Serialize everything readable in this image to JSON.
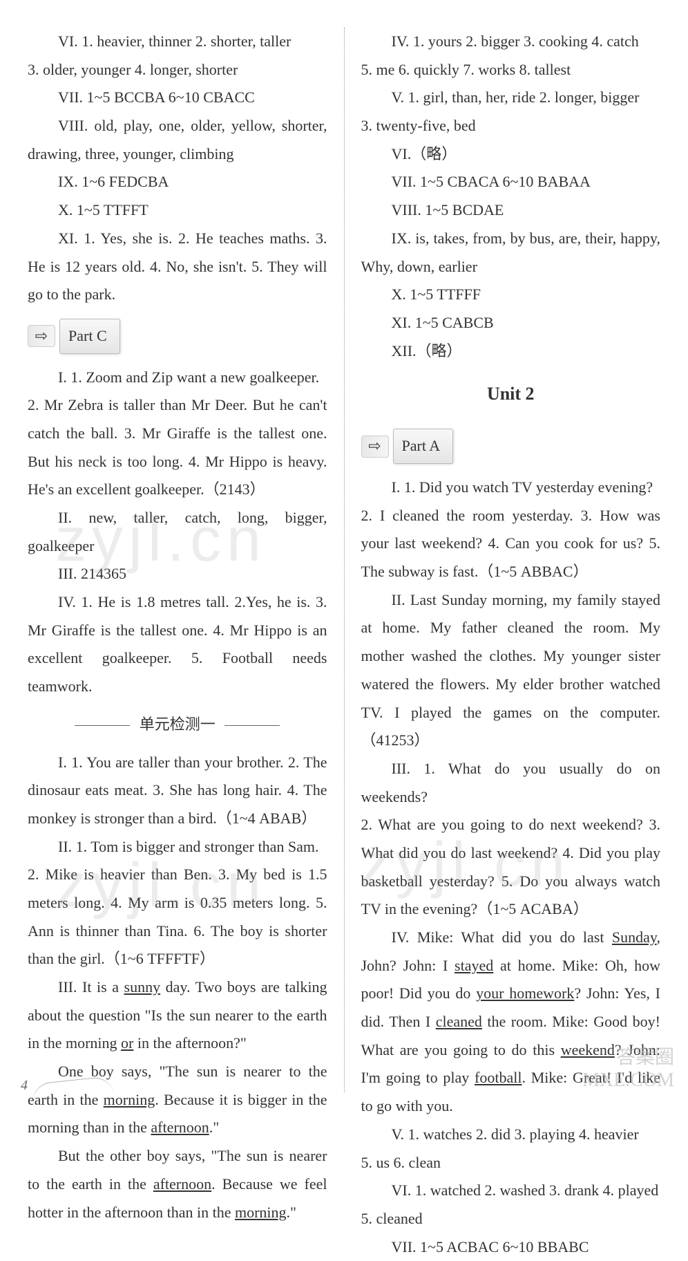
{
  "left": {
    "vi": "VI. 1. heavier, thinner   2. shorter, taller",
    "vi_cont": "3. older, younger   4. longer, shorter",
    "vii": "VII. 1~5 BCCBA   6~10 CBACC",
    "viii": "VIII. old, play, one, older, yellow, shorter, drawing, three, younger, climbing",
    "ix": "IX. 1~6 FEDCBA",
    "x": "X. 1~5 TTFFT",
    "xi": "XI. 1. Yes, she is.   2. He teaches maths.   3. He is 12 years old.   4. No, she isn't.   5. They will go to the park.",
    "partC_label": "Part C",
    "c_i": "I. 1. Zoom and Zip want a new goalkeeper.",
    "c_i2": "2. Mr Zebra is taller than Mr Deer. But he can't catch the ball.   3. Mr Giraffe is the tallest one. But his neck is too long.   4. Mr Hippo is heavy. He's an excellent goalkeeper.（2143）",
    "c_ii": "II. new, taller, catch, long, bigger, goalkeeper",
    "c_iii": "III. 214365",
    "c_iv": "IV. 1. He is 1.8 metres tall.   2.Yes, he is.   3. Mr Giraffe is the tallest one.   4. Mr Hippo is an excellent goalkeeper.   5. Football needs teamwork.",
    "unit_test_label": "单元检测一",
    "t_i": "I. 1. You are taller than your brother.   2. The dinosaur eats meat.   3. She has long hair.   4. The monkey is stronger than a bird.（1~4 ABAB）",
    "t_ii": "II. 1. Tom is bigger and stronger than Sam.",
    "t_ii2": "2. Mike is heavier than Ben.   3. My bed is 1.5 meters long.   4. My arm is 0.35 meters long.   5. Ann is thinner than Tina.  6. The boy is shorter than the girl.（1~6 TFFFTF）",
    "t_iii_a": "III. It is a ",
    "t_iii_sunny": "sunny",
    "t_iii_b": " day. Two boys are talking about the question \"Is the sun nearer to the earth in the morning ",
    "t_iii_or": "or",
    "t_iii_c": " in the afternoon?\"",
    "t_iii_p2a": "One boy says, \"The sun is nearer to the earth in the ",
    "t_iii_morning": "morning",
    "t_iii_p2b": ". Because it is bigger in the morning than in the ",
    "t_iii_afternoon": "afternoon",
    "t_iii_p2c": ".\"",
    "t_iii_p3a": "But the other boy says, \"The sun is nearer to the earth in the ",
    "t_iii_afternoon2": "afternoon",
    "t_iii_p3b": ". Because we feel hotter in the afternoon than in the ",
    "t_iii_morning2": "morning",
    "t_iii_p3c": ".\""
  },
  "right": {
    "iv": "IV. 1. yours   2. bigger   3. cooking   4. catch",
    "iv_cont": "5. me   6. quickly   7. works   8. tallest",
    "v": "V. 1. girl, than, her, ride   2. longer, bigger",
    "v_cont": "3. twenty-five, bed",
    "vi": "VI.（略）",
    "vii": "VII. 1~5 CBACA   6~10 BABAA",
    "viii": "VIII. 1~5 BCDAE",
    "ix": "IX. is, takes, from, by bus, are, their, happy, Why, down, earlier",
    "x": "X. 1~5 TTFFF",
    "xi": "XI. 1~5 CABCB",
    "xii": "XII.（略）",
    "unit2": "Unit 2",
    "partA_label": "Part A",
    "a_i": "I. 1. Did you watch TV yesterday evening?",
    "a_i2": "2. I cleaned the room yesterday.   3. How was your last weekend?   4. Can you cook for us?   5. The subway is fast.（1~5 ABBAC）",
    "a_ii": "II. Last Sunday morning, my family stayed at home. My father cleaned the room. My mother washed the clothes. My younger sister watered the flowers. My elder brother watched TV. I played the games on the computer.（41253）",
    "a_iii": "III. 1. What do you usually do on weekends?",
    "a_iii2": "2. What are you going to do next weekend?   3. What did you do last weekend?   4. Did you play basketball yesterday?   5. Do you always watch TV in the evening?（1~5 ACABA）",
    "a_iv_a": "IV. Mike: What did you do last ",
    "a_iv_sunday": "Sunday",
    "a_iv_b": ", John?   John: I ",
    "a_iv_stayed": "stayed",
    "a_iv_c": " at home.   Mike: Oh, how poor! Did you do ",
    "a_iv_hw": "your homework",
    "a_iv_d": "?   John: Yes, I did. Then I ",
    "a_iv_cleaned": "cleaned",
    "a_iv_e": " the room.   Mike: Good boy! What are you going to do this ",
    "a_iv_weekend": "weekend",
    "a_iv_f": "?   John: I'm going to play ",
    "a_iv_football": "football",
    "a_iv_g": ".   Mike: Great! I'd like to go with you.",
    "a_v": "V. 1. watches   2. did   3. playing   4. heavier",
    "a_v2": "5. us   6. clean",
    "a_vi": "VI. 1. watched   2. washed   3. drank   4. played",
    "a_vi2": "5. cleaned",
    "a_vii": "VII. 1~5 ACBAC   6~10 BBABC"
  },
  "watermarks": {
    "zyjl": "zyjl.cn",
    "corner1": "答案圈",
    "corner2": "MXE.COM"
  },
  "page_number": "4"
}
